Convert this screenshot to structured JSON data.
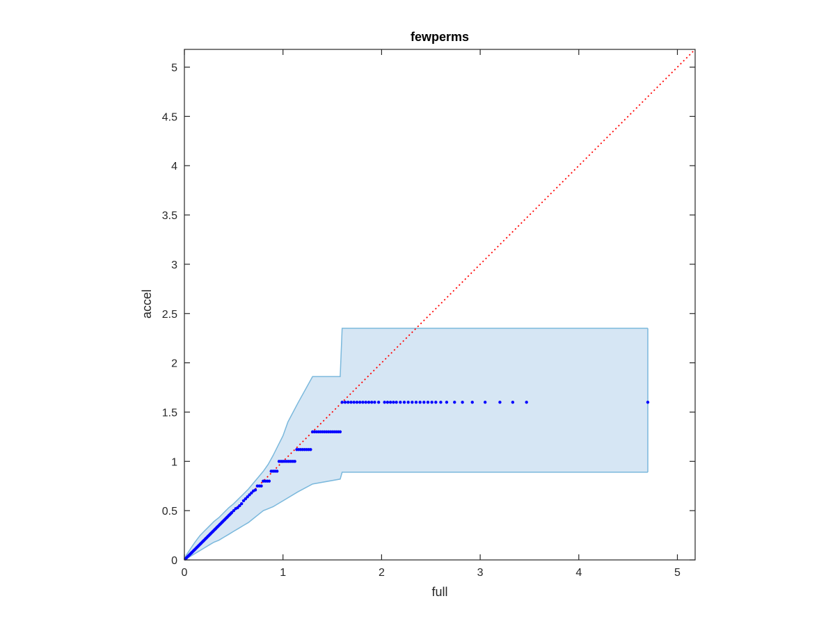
{
  "chart_data": {
    "type": "scatter",
    "title": "fewperms",
    "xlabel": "full",
    "ylabel": "accel",
    "xlim": [
      0,
      5.18
    ],
    "ylim": [
      0,
      5.18
    ],
    "xticks": [
      "0",
      "1",
      "2",
      "3",
      "4",
      "5"
    ],
    "yticks": [
      "0",
      "0.5",
      "1",
      "1.5",
      "2",
      "2.5",
      "3",
      "3.5",
      "4",
      "4.5",
      "5"
    ],
    "grid": false,
    "legend": "none",
    "colors": {
      "points": "#0000ff",
      "reference_line": "#ff0000",
      "band_fill": "#d6e6f4",
      "band_edge": "#7ab8dc",
      "axes": "#262626"
    },
    "reference_line": {
      "style": "dotted",
      "from": [
        0,
        0
      ],
      "to": [
        5.18,
        5.18
      ]
    },
    "band": {
      "upper": [
        [
          0,
          0
        ],
        [
          0.02,
          0.05
        ],
        [
          0.04,
          0.08
        ],
        [
          0.06,
          0.11
        ],
        [
          0.08,
          0.14
        ],
        [
          0.1,
          0.17
        ],
        [
          0.13,
          0.21
        ],
        [
          0.16,
          0.25
        ],
        [
          0.2,
          0.29
        ],
        [
          0.25,
          0.34
        ],
        [
          0.3,
          0.39
        ],
        [
          0.35,
          0.43
        ],
        [
          0.4,
          0.48
        ],
        [
          0.45,
          0.53
        ],
        [
          0.5,
          0.57
        ],
        [
          0.55,
          0.62
        ],
        [
          0.6,
          0.67
        ],
        [
          0.65,
          0.72
        ],
        [
          0.7,
          0.78
        ],
        [
          0.75,
          0.84
        ],
        [
          0.8,
          0.9
        ],
        [
          0.85,
          0.97
        ],
        [
          0.9,
          1.06
        ],
        [
          0.95,
          1.16
        ],
        [
          1.0,
          1.26
        ],
        [
          1.05,
          1.4
        ],
        [
          1.15,
          1.59
        ],
        [
          1.3,
          1.86
        ],
        [
          1.58,
          1.86
        ],
        [
          1.6,
          2.35
        ],
        [
          4.7,
          2.35
        ]
      ],
      "lower": [
        [
          0,
          0
        ],
        [
          0.05,
          0.03
        ],
        [
          0.1,
          0.06
        ],
        [
          0.15,
          0.09
        ],
        [
          0.2,
          0.12
        ],
        [
          0.25,
          0.15
        ],
        [
          0.3,
          0.18
        ],
        [
          0.35,
          0.2
        ],
        [
          0.4,
          0.23
        ],
        [
          0.45,
          0.26
        ],
        [
          0.5,
          0.29
        ],
        [
          0.55,
          0.32
        ],
        [
          0.6,
          0.35
        ],
        [
          0.65,
          0.38
        ],
        [
          0.7,
          0.42
        ],
        [
          0.75,
          0.46
        ],
        [
          0.8,
          0.5
        ],
        [
          0.9,
          0.54
        ],
        [
          1.0,
          0.6
        ],
        [
          1.15,
          0.69
        ],
        [
          1.3,
          0.77
        ],
        [
          1.58,
          0.82
        ],
        [
          1.6,
          0.89
        ],
        [
          4.7,
          0.89
        ]
      ]
    },
    "points": [
      [
        0.01,
        0.01
      ],
      [
        0.02,
        0.02
      ],
      [
        0.03,
        0.03
      ],
      [
        0.04,
        0.04
      ],
      [
        0.05,
        0.05
      ],
      [
        0.06,
        0.06
      ],
      [
        0.07,
        0.07
      ],
      [
        0.08,
        0.08
      ],
      [
        0.09,
        0.09
      ],
      [
        0.1,
        0.1
      ],
      [
        0.11,
        0.11
      ],
      [
        0.12,
        0.12
      ],
      [
        0.13,
        0.13
      ],
      [
        0.14,
        0.14
      ],
      [
        0.15,
        0.15
      ],
      [
        0.16,
        0.16
      ],
      [
        0.17,
        0.17
      ],
      [
        0.18,
        0.18
      ],
      [
        0.19,
        0.19
      ],
      [
        0.2,
        0.2
      ],
      [
        0.21,
        0.21
      ],
      [
        0.22,
        0.22
      ],
      [
        0.23,
        0.23
      ],
      [
        0.24,
        0.24
      ],
      [
        0.25,
        0.25
      ],
      [
        0.26,
        0.26
      ],
      [
        0.27,
        0.27
      ],
      [
        0.28,
        0.28
      ],
      [
        0.29,
        0.29
      ],
      [
        0.3,
        0.3
      ],
      [
        0.31,
        0.31
      ],
      [
        0.32,
        0.32
      ],
      [
        0.33,
        0.33
      ],
      [
        0.34,
        0.34
      ],
      [
        0.35,
        0.35
      ],
      [
        0.36,
        0.36
      ],
      [
        0.37,
        0.37
      ],
      [
        0.38,
        0.38
      ],
      [
        0.39,
        0.39
      ],
      [
        0.4,
        0.4
      ],
      [
        0.41,
        0.41
      ],
      [
        0.42,
        0.42
      ],
      [
        0.43,
        0.43
      ],
      [
        0.44,
        0.44
      ],
      [
        0.45,
        0.45
      ],
      [
        0.46,
        0.46
      ],
      [
        0.47,
        0.47
      ],
      [
        0.48,
        0.48
      ],
      [
        0.5,
        0.5
      ],
      [
        0.52,
        0.52
      ],
      [
        0.54,
        0.53
      ],
      [
        0.56,
        0.55
      ],
      [
        0.58,
        0.57
      ],
      [
        0.6,
        0.6
      ],
      [
        0.62,
        0.62
      ],
      [
        0.64,
        0.64
      ],
      [
        0.66,
        0.66
      ],
      [
        0.68,
        0.68
      ],
      [
        0.7,
        0.7
      ],
      [
        0.72,
        0.71
      ],
      [
        0.74,
        0.75
      ],
      [
        0.76,
        0.75
      ],
      [
        0.78,
        0.75
      ],
      [
        0.8,
        0.8
      ],
      [
        0.82,
        0.8
      ],
      [
        0.84,
        0.8
      ],
      [
        0.86,
        0.8
      ],
      [
        0.88,
        0.9
      ],
      [
        0.9,
        0.9
      ],
      [
        0.92,
        0.9
      ],
      [
        0.94,
        0.9
      ],
      [
        0.96,
        1.0
      ],
      [
        0.98,
        1.0
      ],
      [
        1.0,
        1.0
      ],
      [
        1.02,
        1.0
      ],
      [
        1.04,
        1.0
      ],
      [
        1.06,
        1.0
      ],
      [
        1.08,
        1.0
      ],
      [
        1.1,
        1.0
      ],
      [
        1.12,
        1.0
      ],
      [
        1.14,
        1.12
      ],
      [
        1.16,
        1.12
      ],
      [
        1.18,
        1.12
      ],
      [
        1.2,
        1.12
      ],
      [
        1.22,
        1.12
      ],
      [
        1.24,
        1.12
      ],
      [
        1.26,
        1.12
      ],
      [
        1.28,
        1.12
      ],
      [
        1.3,
        1.3
      ],
      [
        1.32,
        1.3
      ],
      [
        1.34,
        1.3
      ],
      [
        1.36,
        1.3
      ],
      [
        1.38,
        1.3
      ],
      [
        1.4,
        1.3
      ],
      [
        1.42,
        1.3
      ],
      [
        1.44,
        1.3
      ],
      [
        1.46,
        1.3
      ],
      [
        1.48,
        1.3
      ],
      [
        1.5,
        1.3
      ],
      [
        1.52,
        1.3
      ],
      [
        1.54,
        1.3
      ],
      [
        1.56,
        1.3
      ],
      [
        1.58,
        1.3
      ],
      [
        1.6,
        1.6
      ],
      [
        1.63,
        1.6
      ],
      [
        1.66,
        1.6
      ],
      [
        1.69,
        1.6
      ],
      [
        1.72,
        1.6
      ],
      [
        1.75,
        1.6
      ],
      [
        1.78,
        1.6
      ],
      [
        1.81,
        1.6
      ],
      [
        1.84,
        1.6
      ],
      [
        1.87,
        1.6
      ],
      [
        1.9,
        1.6
      ],
      [
        1.93,
        1.6
      ],
      [
        1.97,
        1.6
      ],
      [
        2.03,
        1.6
      ],
      [
        2.06,
        1.6
      ],
      [
        2.09,
        1.6
      ],
      [
        2.12,
        1.6
      ],
      [
        2.15,
        1.6
      ],
      [
        2.19,
        1.6
      ],
      [
        2.23,
        1.6
      ],
      [
        2.27,
        1.6
      ],
      [
        2.31,
        1.6
      ],
      [
        2.35,
        1.6
      ],
      [
        2.39,
        1.6
      ],
      [
        2.43,
        1.6
      ],
      [
        2.47,
        1.6
      ],
      [
        2.51,
        1.6
      ],
      [
        2.55,
        1.6
      ],
      [
        2.6,
        1.6
      ],
      [
        2.66,
        1.6
      ],
      [
        2.74,
        1.6
      ],
      [
        2.82,
        1.6
      ],
      [
        2.92,
        1.6
      ],
      [
        3.05,
        1.6
      ],
      [
        3.2,
        1.6
      ],
      [
        3.33,
        1.6
      ],
      [
        3.47,
        1.6
      ],
      [
        4.7,
        1.6
      ]
    ]
  }
}
